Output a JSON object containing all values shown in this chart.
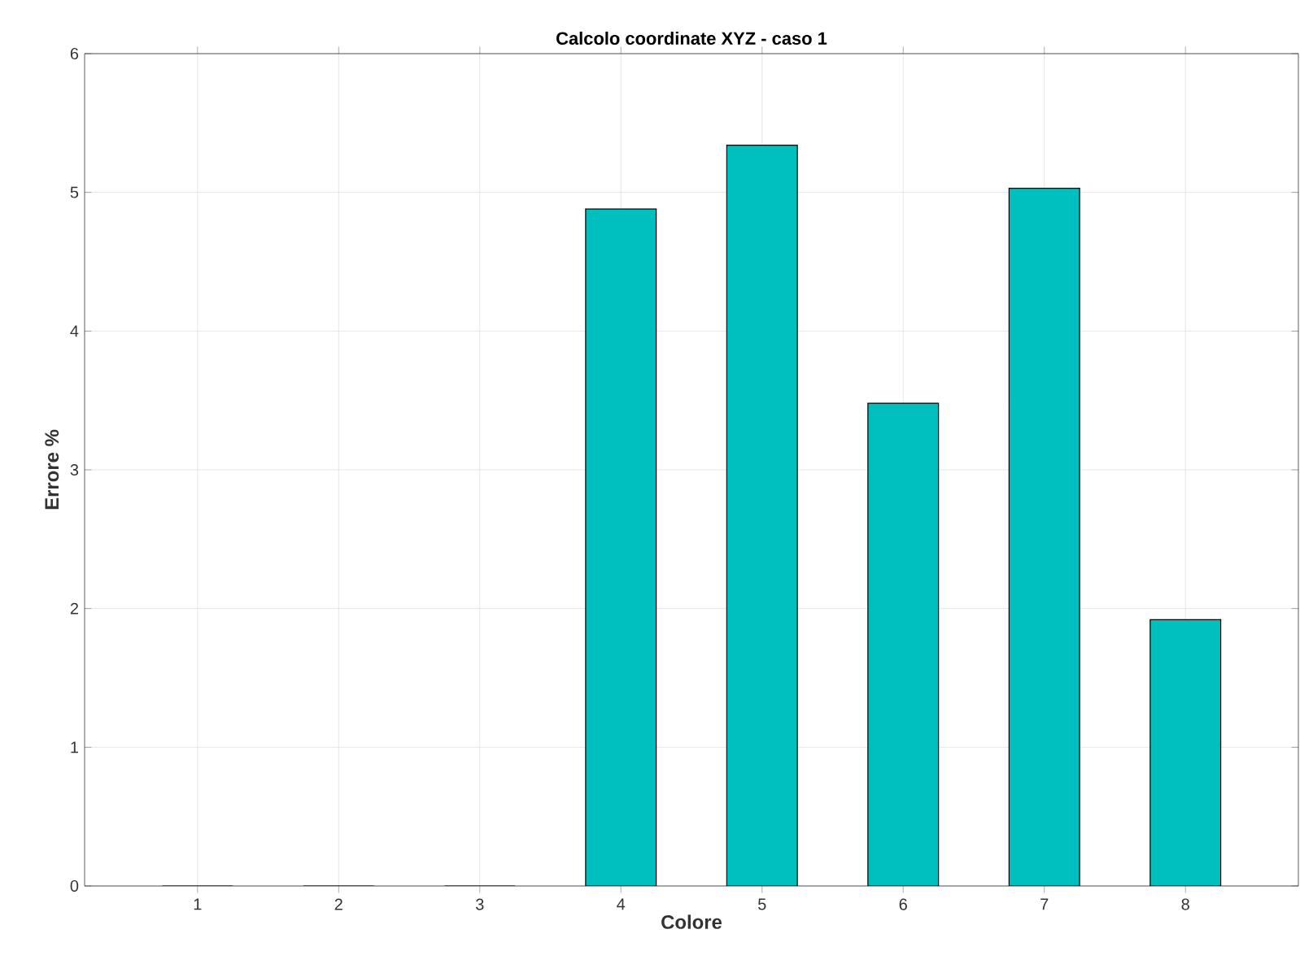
{
  "chart_data": {
    "type": "bar",
    "title": "Calcolo coordinate XYZ - caso 1",
    "xlabel": "Colore",
    "ylabel": "Errore %",
    "x": [
      1,
      2,
      3,
      4,
      5,
      6,
      7,
      8
    ],
    "values": [
      0,
      0,
      0,
      4.88,
      5.34,
      3.48,
      5.03,
      1.92
    ],
    "color": "#00bfbf",
    "xlim": [
      0.2,
      8.8
    ],
    "xticks": [
      1,
      2,
      3,
      4,
      5,
      6,
      7,
      8
    ],
    "ylim": [
      0,
      6
    ],
    "yticks": [
      0,
      1,
      2,
      3,
      4,
      5,
      6
    ],
    "grid": true
  }
}
